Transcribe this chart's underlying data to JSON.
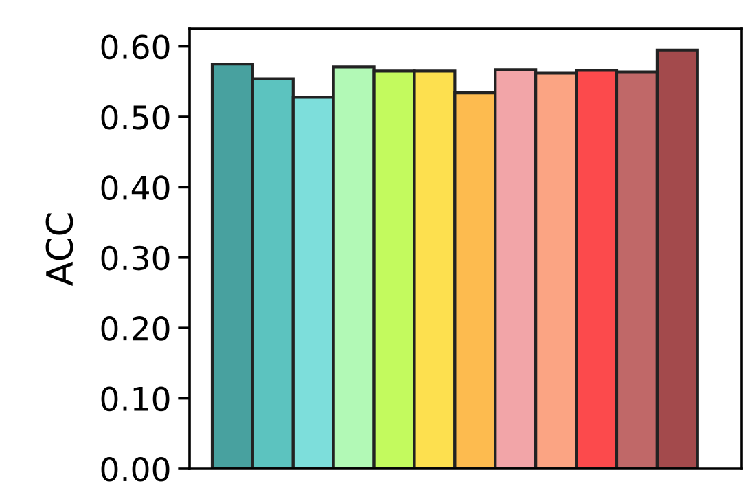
{
  "chart_data": {
    "type": "bar",
    "ylabel": "ACC",
    "categories": [
      null,
      null,
      null,
      null,
      null,
      null,
      null,
      null,
      null,
      null,
      null,
      null
    ],
    "values": [
      0.575,
      0.554,
      0.528,
      0.571,
      0.565,
      0.565,
      0.534,
      0.567,
      0.562,
      0.566,
      0.564,
      0.595
    ],
    "colors": [
      "#48a19f",
      "#5cc3bf",
      "#7ddedb",
      "#b2f9b6",
      "#c3fa5e",
      "#fde04f",
      "#fdbb4f",
      "#f2a5a8",
      "#fba483",
      "#fc4a4c",
      "#c06868",
      "#a34a4c"
    ],
    "ylim": [
      0,
      0.625
    ],
    "yticks": [
      {
        "value": 0,
        "label": "0.00"
      },
      {
        "value": 0.1,
        "label": "0.10"
      },
      {
        "value": 0.2,
        "label": "0.20"
      },
      {
        "value": 0.3,
        "label": "0.30"
      },
      {
        "value": 0.4,
        "label": "0.40"
      },
      {
        "value": 0.5,
        "label": "0.50"
      },
      {
        "value": 0.6,
        "label": "0.60"
      }
    ],
    "grid": false,
    "tick_labels": "y"
  }
}
